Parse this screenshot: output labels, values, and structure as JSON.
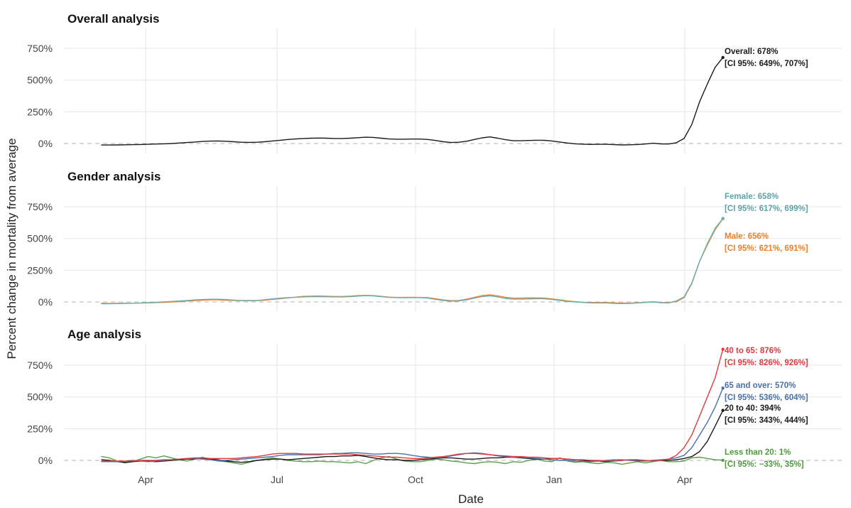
{
  "chart_data": {
    "type": "line",
    "ylabel": "Percent change in mortality from average",
    "xlabel": "Date",
    "x_ticks": [
      "Apr",
      "Jul",
      "Oct",
      "Jan",
      "Apr"
    ],
    "grid": true,
    "ylim": [
      -60,
      950
    ],
    "x": [
      0,
      2,
      4,
      6,
      8,
      10,
      12,
      14,
      16,
      18,
      20,
      22,
      24,
      26,
      28,
      30,
      32,
      34,
      36,
      38,
      40,
      42,
      44,
      46,
      48,
      50,
      52,
      54,
      56,
      58,
      60,
      62,
      64,
      66,
      68,
      70,
      72,
      74,
      76,
      78,
      80,
      82,
      84,
      86,
      88,
      90,
      92,
      94,
      96,
      98,
      100,
      102,
      104,
      106,
      108,
      110,
      112,
      114,
      116,
      118,
      120,
      122,
      124,
      126,
      128,
      130,
      132,
      134,
      136,
      138,
      140,
      142,
      144,
      146,
      148,
      150,
      152,
      154,
      156,
      158,
      160
    ],
    "panels": [
      {
        "title": "Overall analysis",
        "y_ticks": [
          "0%",
          "250%",
          "500%",
          "750%"
        ],
        "y_tick_values": [
          0,
          250,
          500,
          750
        ],
        "series": [
          {
            "name": "Overall",
            "color": "#1a1a1a",
            "values": [
              -12,
              -12,
              -11,
              -10,
              -9,
              -8,
              -6,
              -4,
              -2,
              0,
              4,
              8,
              12,
              16,
              19,
              20,
              18,
              14,
              10,
              9,
              10,
              14,
              20,
              26,
              32,
              36,
              40,
              42,
              43,
              42,
              40,
              40,
              42,
              46,
              50,
              48,
              42,
              36,
              34,
              34,
              35,
              35,
              32,
              24,
              14,
              8,
              10,
              18,
              32,
              45,
              52,
              42,
              30,
              22,
              22,
              24,
              26,
              25,
              20,
              12,
              4,
              -2,
              -5,
              -7,
              -6,
              -6,
              -9,
              -11,
              -10,
              -8,
              -4,
              2,
              -3,
              -4,
              6,
              40,
              150,
              330,
              470,
              600,
              678
            ],
            "labels": [
              "Overall: 678%",
              "[CI 95%: 649%, 707%]"
            ]
          }
        ]
      },
      {
        "title": "Gender analysis",
        "y_ticks": [
          "0%",
          "250%",
          "500%",
          "750%"
        ],
        "y_tick_values": [
          0,
          250,
          500,
          750
        ],
        "series": [
          {
            "name": "Male",
            "color": "#f07f2a",
            "values": [
              -10,
              -12,
              -11,
              -10,
              -10,
              -9,
              -7,
              -5,
              -3,
              0,
              3,
              7,
              11,
              14,
              17,
              16,
              14,
              12,
              10,
              9,
              10,
              14,
              20,
              26,
              32,
              38,
              44,
              46,
              47,
              45,
              43,
              43,
              46,
              50,
              52,
              50,
              44,
              38,
              36,
              36,
              37,
              36,
              34,
              26,
              16,
              10,
              12,
              22,
              36,
              50,
              56,
              48,
              36,
              30,
              30,
              32,
              32,
              30,
              24,
              16,
              8,
              2,
              -2,
              -4,
              -4,
              -4,
              -7,
              -9,
              -9,
              -6,
              -2,
              2,
              -4,
              -5,
              2,
              34,
              145,
              320,
              450,
              570,
              656
            ],
            "labels": [
              "Male: 656%",
              "[CI 95%: 621%, 691%]"
            ]
          },
          {
            "name": "Female",
            "color": "#6aaeb3",
            "values": [
              -14,
              -14,
              -13,
              -12,
              -10,
              -8,
              -5,
              -2,
              1,
              4,
              8,
              12,
              16,
              19,
              21,
              21,
              19,
              15,
              12,
              11,
              12,
              18,
              24,
              30,
              34,
              37,
              40,
              42,
              42,
              41,
              40,
              40,
              42,
              46,
              50,
              47,
              42,
              36,
              34,
              33,
              34,
              34,
              30,
              20,
              12,
              6,
              8,
              16,
              30,
              42,
              48,
              40,
              28,
              22,
              22,
              24,
              26,
              25,
              20,
              12,
              4,
              0,
              -4,
              -7,
              -8,
              -8,
              -11,
              -13,
              -11,
              -8,
              -4,
              0,
              -6,
              -8,
              8,
              40,
              150,
              320,
              460,
              580,
              658
            ],
            "labels": [
              "Female: 658%",
              "[CI 95%: 617%, 699%]"
            ]
          }
        ]
      },
      {
        "title": "Age analysis",
        "y_ticks": [
          "0%",
          "250%",
          "500%",
          "750%"
        ],
        "y_tick_values": [
          0,
          250,
          500,
          750
        ],
        "series": [
          {
            "name": "Less than 20",
            "color": "#5a9e4b",
            "values": [
              30,
              20,
              -5,
              -20,
              -10,
              10,
              30,
              20,
              35,
              20,
              5,
              -5,
              10,
              25,
              5,
              -5,
              -10,
              -20,
              -30,
              -15,
              0,
              10,
              20,
              10,
              0,
              -5,
              -10,
              -10,
              -5,
              -10,
              -10,
              -15,
              -20,
              -10,
              -25,
              0,
              20,
              30,
              10,
              -5,
              -10,
              -10,
              0,
              10,
              5,
              -5,
              -10,
              -20,
              -25,
              -15,
              -10,
              -15,
              -25,
              -10,
              -15,
              0,
              10,
              -5,
              -10,
              20,
              -5,
              -15,
              -10,
              -20,
              -25,
              -15,
              -20,
              -30,
              -20,
              -10,
              -20,
              -10,
              0,
              -10,
              -10,
              -5,
              20,
              25,
              15,
              5,
              1
            ],
            "labels": [
              "Less than 20: 1%",
              "[CI 95%: −33%, 35%]"
            ]
          },
          {
            "name": "20 to 40",
            "color": "#1a1a1a",
            "values": [
              5,
              0,
              -10,
              -15,
              -10,
              -5,
              -5,
              -10,
              -5,
              0,
              5,
              10,
              12,
              15,
              10,
              5,
              -5,
              -10,
              -15,
              -10,
              0,
              5,
              10,
              10,
              5,
              10,
              15,
              20,
              25,
              30,
              30,
              35,
              35,
              40,
              30,
              20,
              10,
              5,
              5,
              0,
              0,
              5,
              10,
              15,
              20,
              20,
              15,
              10,
              10,
              15,
              20,
              20,
              25,
              25,
              20,
              15,
              10,
              10,
              15,
              15,
              10,
              5,
              0,
              -5,
              -5,
              -10,
              -5,
              0,
              5,
              0,
              -5,
              0,
              0,
              0,
              5,
              15,
              30,
              70,
              150,
              270,
              394
            ],
            "labels": [
              "20 to 40: 394%",
              "[CI 95%: 343%, 444%]"
            ]
          },
          {
            "name": "65 and over",
            "color": "#4a70a8",
            "values": [
              -10,
              -10,
              -10,
              -5,
              0,
              -5,
              -10,
              -5,
              0,
              5,
              10,
              15,
              15,
              10,
              5,
              0,
              0,
              5,
              10,
              15,
              20,
              25,
              30,
              40,
              45,
              45,
              45,
              45,
              45,
              50,
              55,
              55,
              60,
              60,
              55,
              50,
              50,
              55,
              55,
              50,
              40,
              30,
              25,
              20,
              25,
              35,
              45,
              55,
              60,
              55,
              45,
              35,
              30,
              25,
              25,
              20,
              15,
              10,
              5,
              0,
              0,
              -5,
              -10,
              -10,
              -5,
              0,
              5,
              5,
              0,
              -5,
              -5,
              0,
              5,
              10,
              20,
              40,
              100,
              200,
              300,
              420,
              570
            ],
            "labels": [
              "65 and over: 570%",
              "[CI 95%: 536%, 604%]"
            ]
          },
          {
            "name": "40 to 65",
            "color": "#e23a3d",
            "values": [
              -5,
              -5,
              -5,
              -5,
              -5,
              0,
              0,
              0,
              5,
              5,
              10,
              15,
              20,
              20,
              15,
              15,
              15,
              15,
              20,
              25,
              30,
              40,
              50,
              55,
              55,
              55,
              50,
              50,
              50,
              50,
              50,
              50,
              50,
              45,
              40,
              35,
              30,
              25,
              25,
              20,
              15,
              15,
              20,
              25,
              30,
              40,
              50,
              55,
              55,
              50,
              45,
              40,
              35,
              30,
              30,
              25,
              25,
              20,
              15,
              15,
              10,
              5,
              5,
              0,
              0,
              -5,
              -5,
              0,
              5,
              5,
              0,
              -5,
              0,
              10,
              40,
              100,
              200,
              350,
              500,
              650,
              876
            ],
            "labels": [
              "40 to 65: 876%",
              "[CI 95%: 826%, 926%]"
            ]
          }
        ]
      }
    ]
  }
}
